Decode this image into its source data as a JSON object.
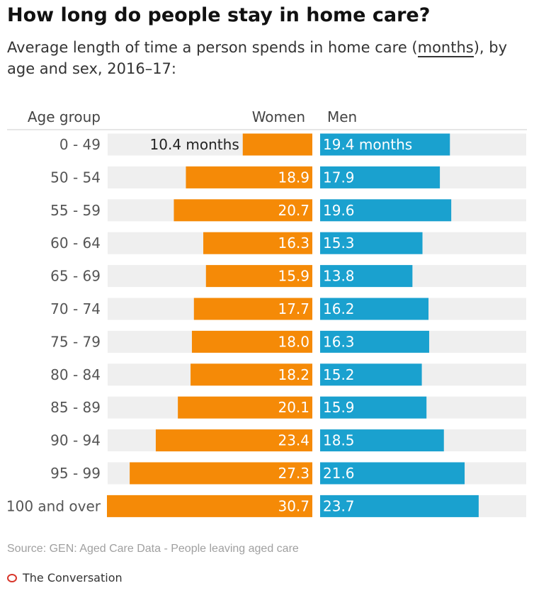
{
  "header": {
    "title": "How long do people stay in home care?",
    "subtitle_pre": "Average length of time a person spends in home care (",
    "subtitle_unit": "months",
    "subtitle_post": "), by age and sex, 2016–17:"
  },
  "footer": {
    "source": "Source: GEN: Aged Care Data - People leaving aged care",
    "brand": "The Conversation"
  },
  "colors": {
    "women": "#f58a07",
    "men": "#1aa1cf",
    "track": "#efefef",
    "divider": "#cccccc"
  },
  "chart_data": {
    "type": "bar",
    "orientation": "horizontal",
    "layout": "back-to-back",
    "category_header": "Age group",
    "categories": [
      "0 - 49",
      "50 - 54",
      "55 - 59",
      "60 - 64",
      "65 - 69",
      "70 - 74",
      "75 - 79",
      "80 - 84",
      "85 - 89",
      "90 - 94",
      "95 - 99",
      "100 and over"
    ],
    "series": [
      {
        "name": "Women",
        "values": [
          10.4,
          18.9,
          20.7,
          16.3,
          15.9,
          17.7,
          18.0,
          18.2,
          20.1,
          23.4,
          27.3,
          30.7
        ],
        "labels": [
          "10.4 months",
          "18.9",
          "20.7",
          "16.3",
          "15.9",
          "17.7",
          "18.0",
          "18.2",
          "20.1",
          "23.4",
          "27.3",
          "30.7"
        ]
      },
      {
        "name": "Men",
        "values": [
          19.4,
          17.9,
          19.6,
          15.3,
          13.8,
          16.2,
          16.3,
          15.2,
          15.9,
          18.5,
          21.6,
          23.7
        ],
        "labels": [
          "19.4 months",
          "17.9",
          "19.6",
          "15.3",
          "13.8",
          "16.2",
          "16.3",
          "15.2",
          "15.9",
          "18.5",
          "21.6",
          "23.7"
        ]
      }
    ],
    "xlim": [
      0,
      30.7
    ],
    "grid": false,
    "legend": "column headers"
  }
}
